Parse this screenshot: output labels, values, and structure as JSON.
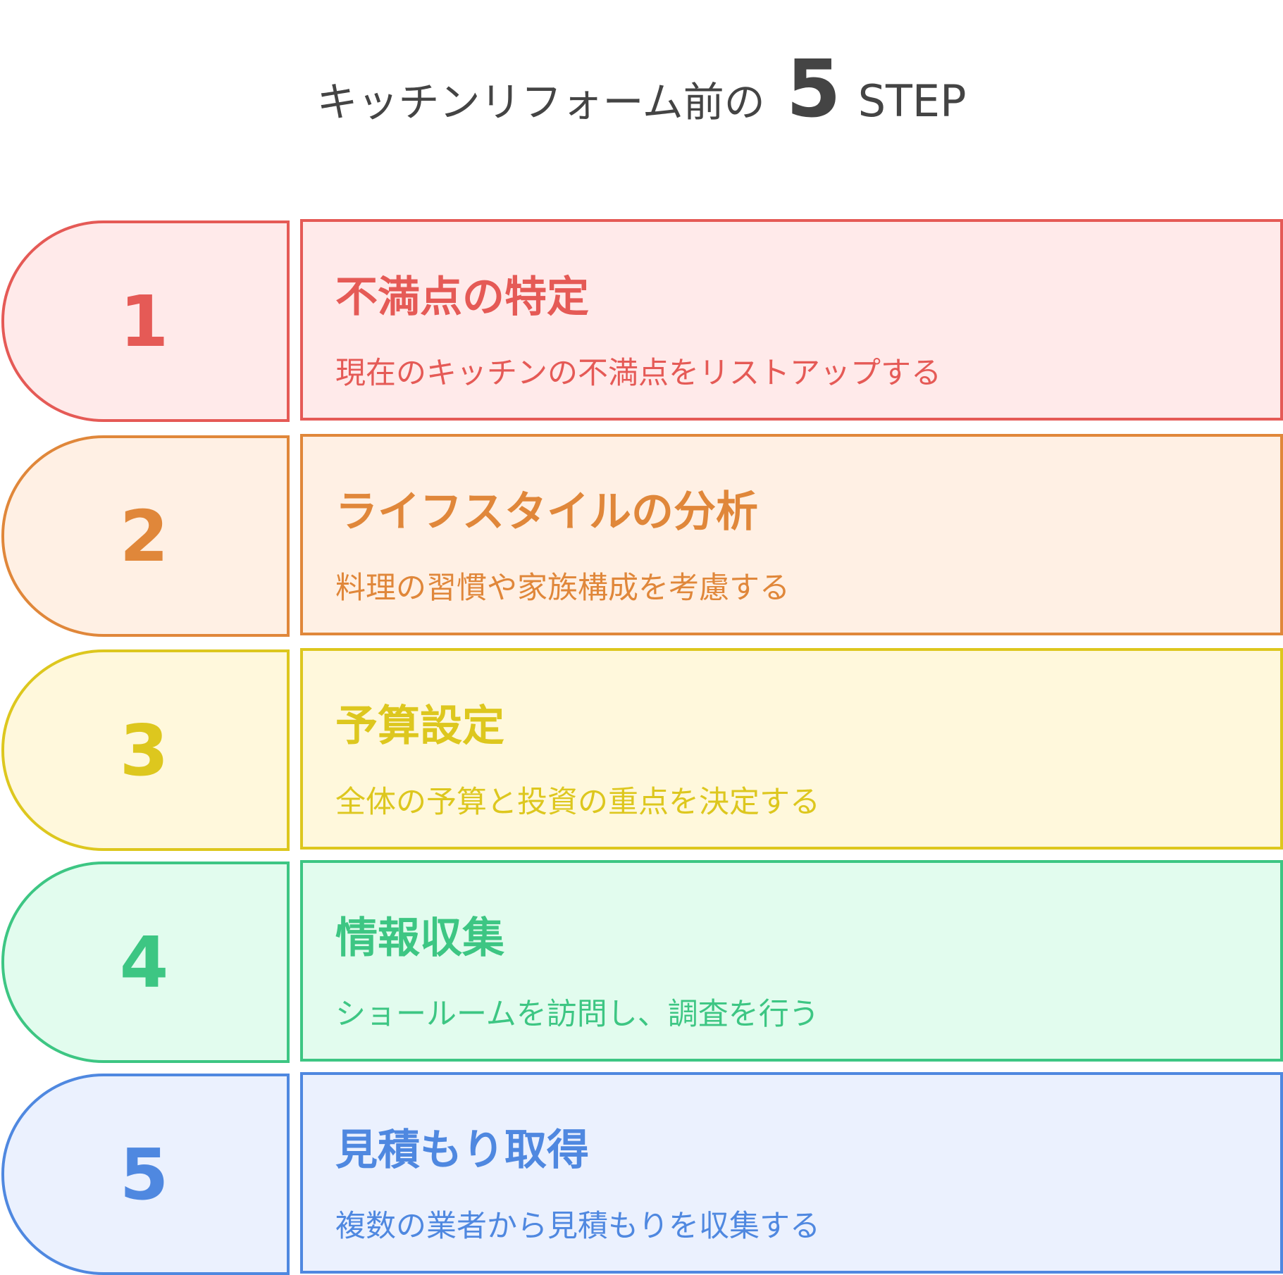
{
  "title": {
    "prefix": "キッチンリフォーム前の",
    "number": "5",
    "suffix": "STEP"
  },
  "steps": [
    {
      "number": "1",
      "heading": "不満点の特定",
      "description": "現在のキッチンの不満点をリストアップする",
      "color": "#E55A56",
      "background": "#FFEAEA"
    },
    {
      "number": "2",
      "heading": "ライフスタイルの分析",
      "description": "料理の習慣や家族構成を考慮する",
      "color": "#E0873A",
      "background": "#FFF0E4"
    },
    {
      "number": "3",
      "heading": "予算設定",
      "description": "全体の予算と投資の重点を決定する",
      "color": "#DDC71E",
      "background": "#FFF8DC"
    },
    {
      "number": "4",
      "heading": "情報収集",
      "description": "ショールームを訪問し、調査を行う",
      "color": "#3DC683",
      "background": "#E2FCEE"
    },
    {
      "number": "5",
      "heading": "見積もり取得",
      "description": "複数の業者から見積もりを収集する",
      "color": "#4F88E0",
      "background": "#EBF1FE"
    }
  ]
}
